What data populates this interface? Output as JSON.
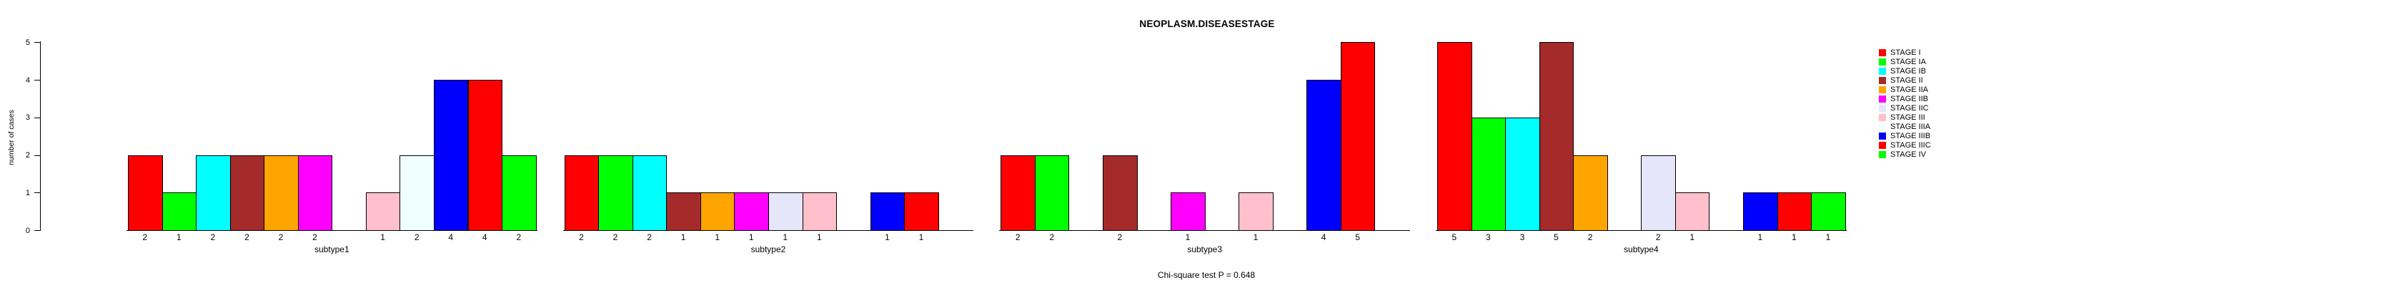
{
  "chart": {
    "title": "NEOPLASM.DISEASESTAGE",
    "ylabel": "number of cases",
    "footnote": "Chi-square test P = 0.648"
  },
  "chart_data": {
    "type": "bar",
    "title": "NEOPLASM.DISEASESTAGE",
    "xlabel": "",
    "ylabel": "number of cases",
    "ylim": [
      0,
      5
    ],
    "yticks": [
      0,
      1,
      2,
      3,
      4,
      5
    ],
    "grid": false,
    "legend_position": "right",
    "annotation": "Chi-square test P = 0.648",
    "bar_value_labels_shown": true,
    "categories": [
      "subtype1",
      "subtype2",
      "subtype3",
      "subtype4"
    ],
    "series": [
      {
        "name": "STAGE I",
        "color": "#FF0000",
        "values": [
          2,
          2,
          2,
          5
        ]
      },
      {
        "name": "STAGE IA",
        "color": "#00FF00",
        "values": [
          1,
          2,
          2,
          3
        ]
      },
      {
        "name": "STAGE IB",
        "color": "#00FFFF",
        "values": [
          2,
          2,
          0,
          3
        ]
      },
      {
        "name": "STAGE II",
        "color": "#A52A2A",
        "values": [
          2,
          1,
          2,
          5
        ]
      },
      {
        "name": "STAGE IIA",
        "color": "#FFA500",
        "values": [
          2,
          1,
          0,
          2
        ]
      },
      {
        "name": "STAGE IIB",
        "color": "#FF00FF",
        "values": [
          2,
          1,
          1,
          0
        ]
      },
      {
        "name": "STAGE IIC",
        "color": "#E6E6FA",
        "values": [
          0,
          1,
          0,
          2
        ]
      },
      {
        "name": "STAGE III",
        "color": "#FFC0CB",
        "values": [
          1,
          1,
          1,
          1
        ]
      },
      {
        "name": "STAGE IIIA",
        "color": "#F0FFFF",
        "values": [
          2,
          0,
          0,
          0
        ]
      },
      {
        "name": "STAGE IIIB",
        "color": "#0000FF",
        "values": [
          4,
          1,
          4,
          1
        ]
      },
      {
        "name": "STAGE IIIC",
        "color": "#FF0000",
        "values": [
          4,
          1,
          5,
          1
        ]
      },
      {
        "name": "STAGE IV",
        "color": "#00FF00",
        "values": [
          2,
          0,
          0,
          1
        ]
      }
    ]
  }
}
